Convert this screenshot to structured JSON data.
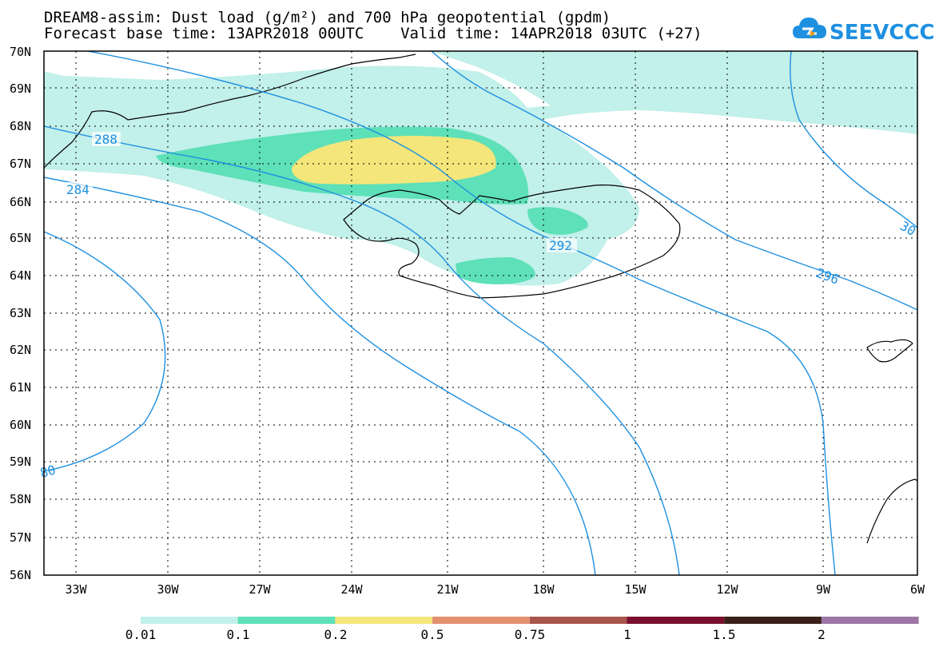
{
  "title_line1": "DREAM8-assim: Dust load (g/m²) and 700 hPa geopotential (gpdm)",
  "title_line2": "Forecast base time: 13APR2018 00UTC    Valid time: 14APR2018 03UTC (+27)",
  "logo": {
    "text": "SEEVCCC",
    "icon": "cloud-logo-icon",
    "color": "#1e90e0"
  },
  "lat_labels": [
    "70N",
    "69N",
    "68N",
    "67N",
    "66N",
    "65N",
    "64N",
    "63N",
    "62N",
    "61N",
    "60N",
    "59N",
    "58N",
    "57N",
    "56N"
  ],
  "lon_labels": [
    "33W",
    "30W",
    "27W",
    "24W",
    "21W",
    "18W",
    "15W",
    "12W",
    "9W",
    "6W"
  ],
  "contour_labels": [
    "288",
    "284",
    "292",
    "296",
    "30",
    "80"
  ],
  "colorbar": {
    "labels": [
      "0.01",
      "0.1",
      "0.2",
      "0.5",
      "0.75",
      "1",
      "1.5",
      "2"
    ],
    "colors": [
      "#c2f0ea",
      "#5ee0b8",
      "#f4e67a",
      "#e39070",
      "#a8554b",
      "#7a1030",
      "#3a2018",
      "#9e76a6"
    ]
  },
  "dust_colors": {
    "low": "#c2f0ea",
    "mid": "#5ee0b8",
    "high": "#f4e67a"
  },
  "contour_color": "#1e90e0"
}
